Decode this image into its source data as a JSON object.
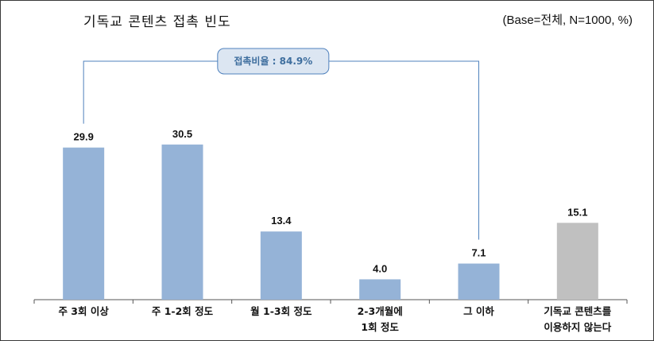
{
  "title": "기독교 콘텐츠 접촉 빈도",
  "base_note": "(Base=전체, N=1000, %)",
  "bracket": {
    "label": "접촉비율 : 84.9%",
    "spans": [
      "주 3회 이상",
      "그 이하"
    ]
  },
  "chart_data": {
    "type": "bar",
    "title": "기독교 콘텐츠 접촉 빈도",
    "categories": [
      "주 3회 이상",
      "주 1-2회 정도",
      "월 1-3회 정도",
      "2-3개월에\n1회 정도",
      "그 이하",
      "기독교 콘텐츠를\n이용하지 않는다"
    ],
    "values": [
      29.9,
      30.5,
      13.4,
      4.0,
      7.1,
      15.1
    ],
    "value_labels": [
      "29.9",
      "30.5",
      "13.4",
      "4.0",
      "7.1",
      "15.1"
    ],
    "unit": "%",
    "ylim": [
      0,
      34
    ],
    "grid": false,
    "legend": "none",
    "colors": {
      "contact": "#95b3d7",
      "non_contact": "#c0c0c0",
      "bracket_line": "#4f81bd",
      "bracket_box_fill": "#dce6f2",
      "bracket_box_border": "#4f81bd"
    },
    "bar_color_index": [
      0,
      0,
      0,
      0,
      0,
      1
    ]
  }
}
